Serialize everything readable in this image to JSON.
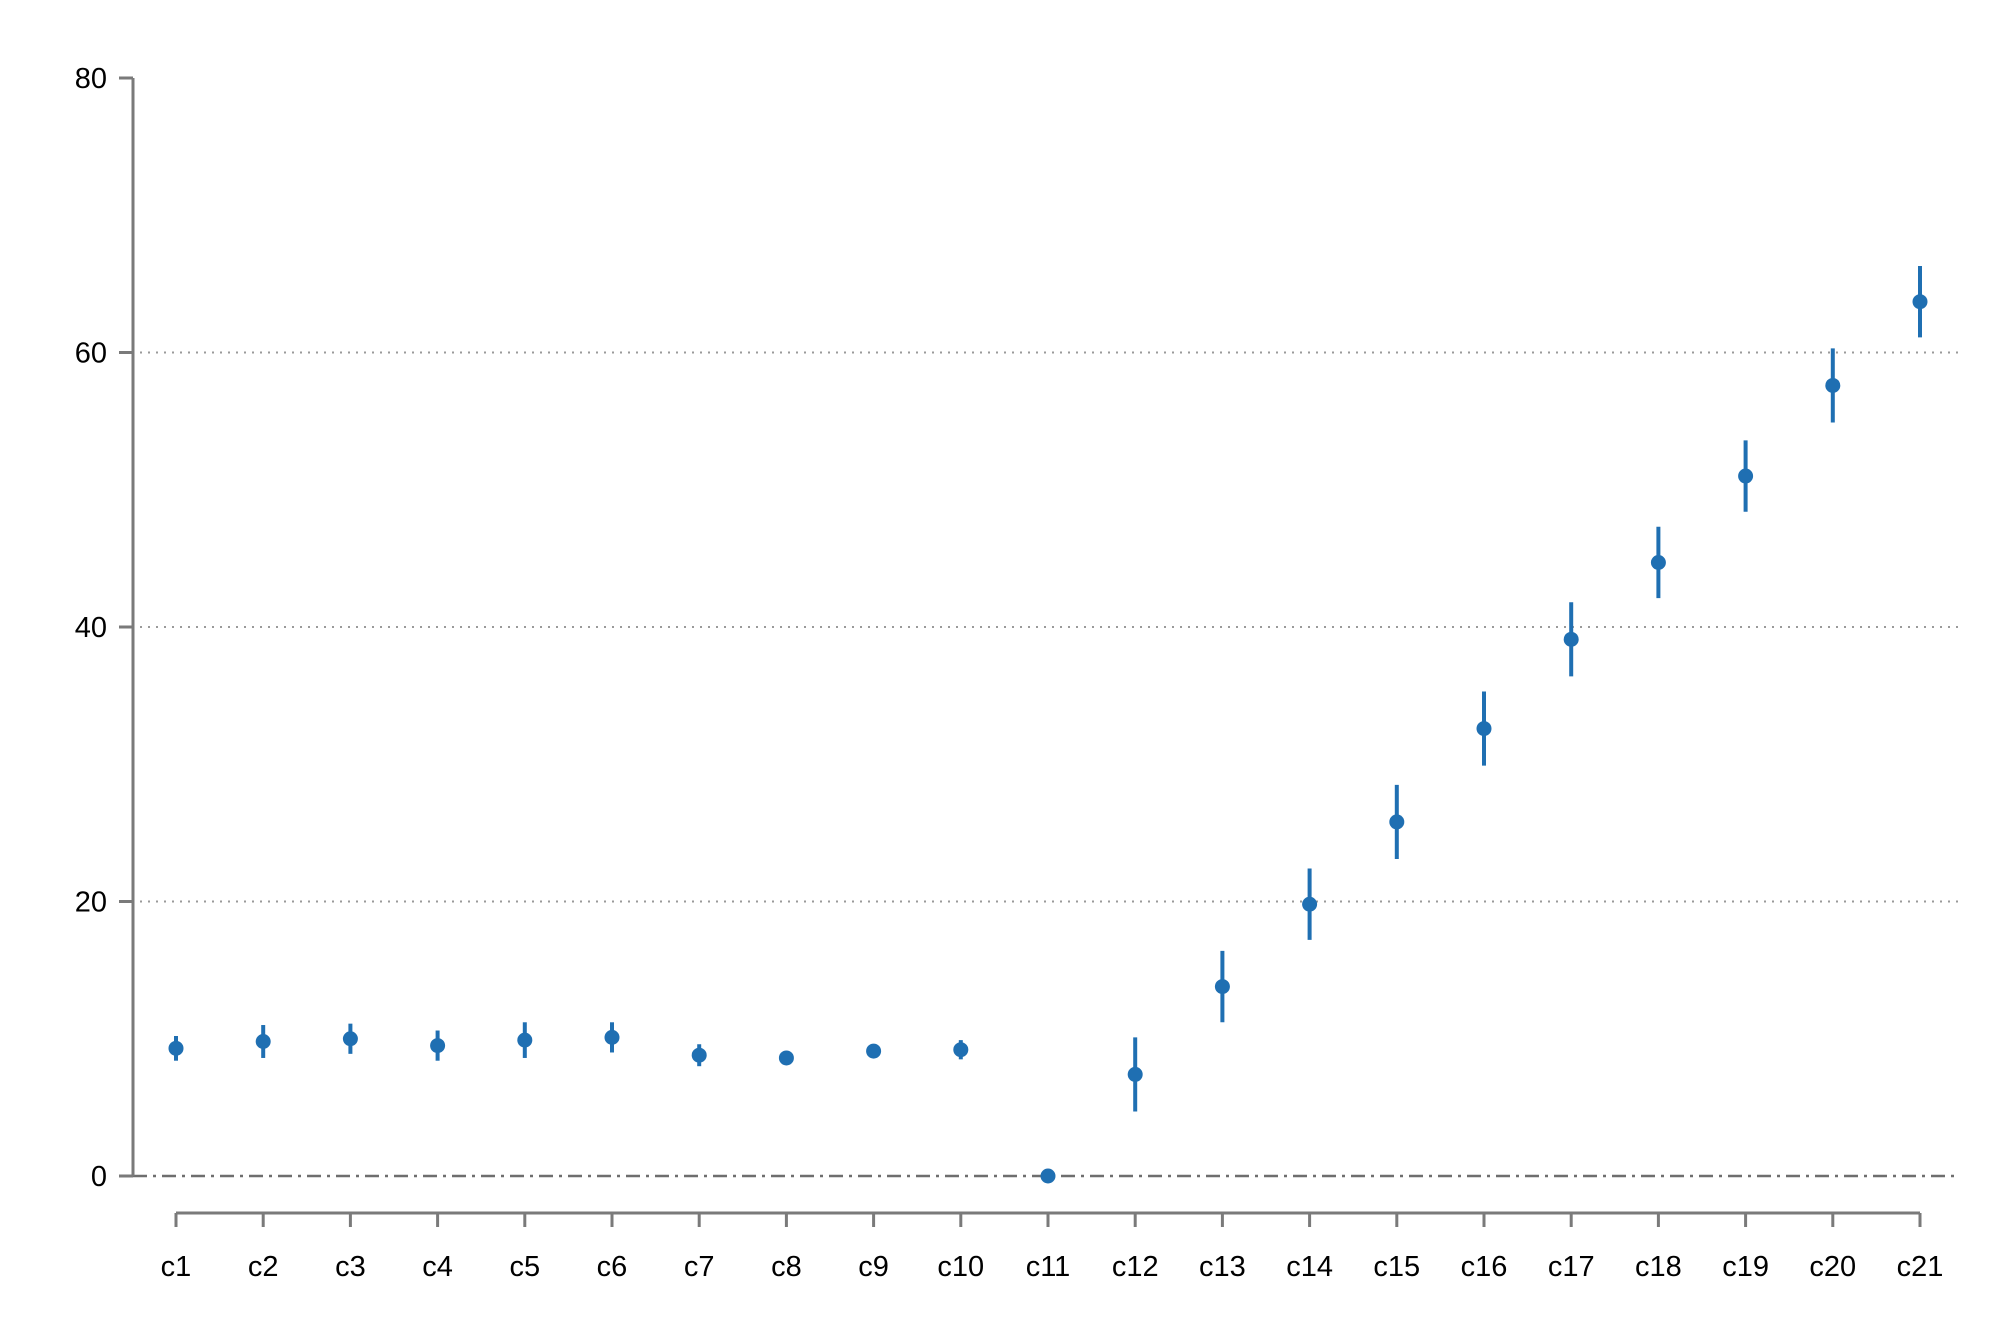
{
  "chart_data": {
    "type": "scatter",
    "title": "",
    "xlabel": "",
    "ylabel": "",
    "ylim": [
      0,
      80
    ],
    "yticks": [
      0,
      20,
      40,
      60,
      80
    ],
    "grid": "horizontal dotted at 20, 40, 60",
    "reference_line": 0,
    "categories": [
      "c1",
      "c2",
      "c3",
      "c4",
      "c5",
      "c6",
      "c7",
      "c8",
      "c9",
      "c10",
      "c11",
      "c12",
      "c13",
      "c14",
      "c15",
      "c16",
      "c17",
      "c18",
      "c19",
      "c20",
      "c21"
    ],
    "series": [
      {
        "values": [
          9.3,
          9.8,
          10.0,
          9.5,
          9.9,
          10.1,
          8.8,
          8.6,
          9.1,
          9.2,
          0.0,
          7.4,
          13.8,
          19.8,
          25.8,
          32.6,
          39.1,
          44.7,
          51.0,
          57.6,
          63.7
        ],
        "ci_low": [
          8.4,
          8.6,
          8.9,
          8.4,
          8.6,
          9.0,
          8.0,
          8.1,
          8.6,
          8.5,
          0.0,
          4.7,
          11.2,
          17.2,
          23.1,
          29.9,
          36.4,
          42.1,
          48.4,
          54.9,
          61.1
        ],
        "ci_high": [
          10.2,
          11.0,
          11.1,
          10.6,
          11.2,
          11.2,
          9.6,
          9.1,
          9.6,
          9.9,
          0.0,
          10.1,
          16.4,
          22.4,
          28.5,
          35.3,
          41.8,
          47.3,
          53.6,
          60.3,
          66.3
        ]
      }
    ],
    "colors": {
      "series": "#1f6fb2",
      "axis": "#7a7a7a",
      "grid": "#9a9a9a"
    }
  }
}
